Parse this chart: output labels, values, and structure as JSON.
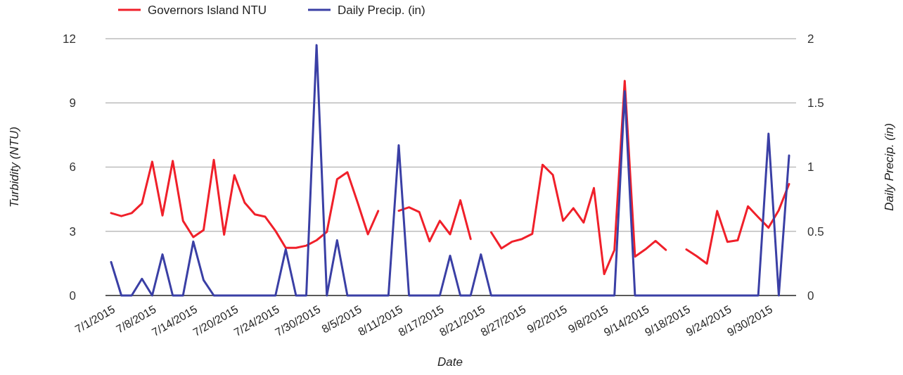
{
  "chart_data": {
    "type": "line",
    "xlabel": "Date",
    "ylabel": "Turbidity (NTU)",
    "y2label": "Daily Precip. (in)",
    "categories": [
      "7/1/2015",
      null,
      null,
      null,
      "7/8/2015",
      null,
      null,
      null,
      "7/14/2015",
      null,
      null,
      null,
      "7/20/2015",
      null,
      null,
      null,
      "7/24/2015",
      null,
      null,
      null,
      "7/30/2015",
      null,
      null,
      null,
      "8/5/2015",
      null,
      null,
      null,
      "8/11/2015",
      null,
      null,
      null,
      "8/17/2015",
      null,
      null,
      null,
      "8/21/2015",
      null,
      null,
      null,
      "8/27/2015",
      null,
      null,
      null,
      "9/2/2015",
      null,
      null,
      null,
      "9/8/2015",
      null,
      null,
      null,
      "9/14/2015",
      null,
      null,
      null,
      "9/18/2015",
      null,
      null,
      null,
      "9/24/2015",
      null,
      null,
      null,
      "9/30/2015",
      null,
      null
    ],
    "series": [
      {
        "name": "Governors Island NTU",
        "color": "#f0202a",
        "values": [
          3.85,
          3.71,
          3.85,
          4.3,
          6.25,
          3.74,
          6.29,
          3.49,
          2.73,
          3.06,
          6.34,
          2.84,
          5.62,
          4.34,
          3.79,
          3.68,
          3.02,
          2.23,
          2.23,
          2.33,
          2.58,
          2.97,
          5.43,
          5.76,
          4.34,
          2.86,
          3.95,
          null,
          3.96,
          4.12,
          3.9,
          2.53,
          3.49,
          2.86,
          4.45,
          2.64,
          null,
          2.95,
          2.2,
          2.51,
          2.64,
          2.88,
          6.11,
          5.64,
          3.49,
          4.08,
          3.41,
          5.02,
          1.0,
          2.13,
          10.03,
          1.82,
          2.15,
          2.55,
          2.13,
          null,
          2.15,
          1.84,
          1.49,
          3.95,
          2.51,
          2.58,
          4.17,
          3.66,
          3.17,
          3.99,
          5.21
        ]
      },
      {
        "name": "Daily Precip. (in)",
        "color": "#3a3fa5",
        "axis": "y2",
        "values": [
          0.26,
          0,
          0,
          0.13,
          0,
          0.32,
          0,
          0,
          0.42,
          0.12,
          0,
          0,
          0,
          0,
          0,
          0,
          0,
          0.36,
          0,
          0,
          1.95,
          0,
          0.43,
          0,
          0,
          0,
          0,
          0,
          1.17,
          0,
          0,
          0,
          0,
          0.31,
          0,
          0,
          0.32,
          0,
          0,
          0,
          0,
          0,
          0,
          0,
          0,
          0,
          0,
          0,
          0,
          0,
          1.59,
          0,
          0,
          0,
          0,
          0,
          0,
          0,
          0,
          0,
          0,
          0,
          0,
          0,
          1.26,
          0,
          1.09
        ]
      }
    ],
    "ylim": [
      0,
      12
    ],
    "yticks": [
      0,
      3,
      6,
      9,
      12
    ],
    "y2lim": [
      0,
      2
    ],
    "y2ticks": [
      0,
      0.5,
      1,
      1.5,
      2
    ],
    "grid": "y",
    "legend": "top left",
    "marker": "none",
    "line_style": "solid"
  }
}
